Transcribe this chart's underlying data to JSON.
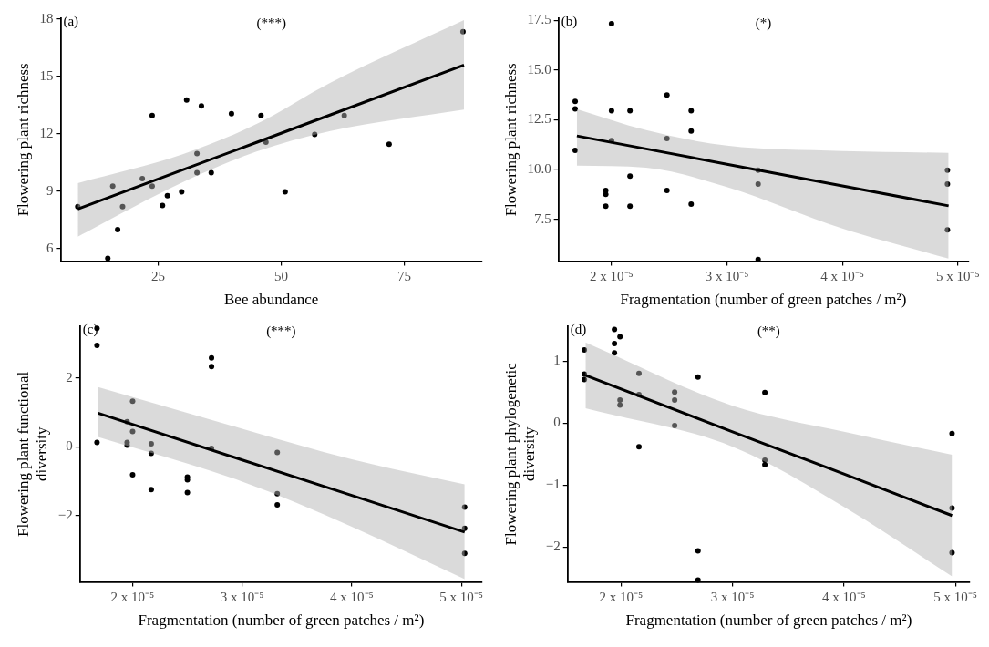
{
  "chart_data": [
    {
      "type": "scatter",
      "xlabel": "Bee abundance",
      "ylabel": "Flowering plant richness",
      "annotations": [
        "(a)",
        "(***)"
      ],
      "line_style": "solid",
      "grid": false,
      "xlim": [
        5.2,
        90.8
      ],
      "xticks": [
        25,
        50,
        75
      ],
      "ylim": [
        5.35,
        18.05
      ],
      "yticks": [
        6,
        9,
        12,
        15,
        18
      ],
      "series": [
        {
          "marker": "circle",
          "color": "#000000",
          "x": [
            8.7,
            15.8,
            17.8,
            16.8,
            14.8,
            21.8,
            23.8,
            23.8,
            25.9,
            26.9,
            29.8,
            30.8,
            32.9,
            32.9,
            33.8,
            35.8,
            39.9,
            45.9,
            46.9,
            50.8,
            56.8,
            62.8,
            71.9,
            86.9
          ],
          "values": [
            8.2,
            9.27,
            8.2,
            7.0,
            5.5,
            9.67,
            12.97,
            9.27,
            8.26,
            8.77,
            8.98,
            13.78,
            10.98,
            9.97,
            13.46,
            9.97,
            13.06,
            12.97,
            11.57,
            8.98,
            11.98,
            12.97,
            11.46,
            17.35
          ]
        },
        {
          "type": "line",
          "color": "#000000",
          "x": [
            8.7,
            30,
            45,
            60,
            87.1
          ],
          "values": [
            8.08,
            10.12,
            11.56,
            13.0,
            15.6
          ],
          "lower": [
            6.63,
            9.47,
            11.08,
            12.16,
            13.28
          ],
          "upper": [
            9.43,
            10.94,
            12.52,
            14.68,
            17.95
          ]
        }
      ]
    },
    {
      "type": "scatter",
      "xlabel": "Fragmentation (number of green patches / m²)",
      "ylabel": "Flowering plant richness",
      "annotations": [
        "(b)",
        "(*)"
      ],
      "line_style": "solid",
      "grid": false,
      "xlim": [
        1.54e-05,
        5.09e-05
      ],
      "xticks": [
        {
          "value": 2e-05,
          "label": "2 x 10⁻⁵"
        },
        {
          "value": 3e-05,
          "label": "3 x 10⁻⁵"
        },
        {
          "value": 4e-05,
          "label": "4 x 10⁻⁵"
        },
        {
          "value": 5e-05,
          "label": "5 x 10⁻⁵"
        }
      ],
      "ylim": [
        5.4,
        17.6
      ],
      "yticks": [
        {
          "value": 7.5,
          "label": "7.5"
        },
        {
          "value": 10,
          "label": "10.0"
        },
        {
          "value": 12.5,
          "label": "12.5"
        },
        {
          "value": 15,
          "label": "15.0"
        },
        {
          "value": 17.5,
          "label": "17.5"
        }
      ],
      "series": [
        {
          "marker": "circle",
          "color": "#000000",
          "x": [
            1.685e-05,
            1.685e-05,
            1.685e-05,
            2e-05,
            2e-05,
            2e-05,
            1.95e-05,
            1.95e-05,
            1.95e-05,
            2.16e-05,
            2.16e-05,
            2.16e-05,
            2.48e-05,
            2.48e-05,
            2.48e-05,
            2.69e-05,
            2.69e-05,
            2.69e-05,
            3.27e-05,
            3.27e-05,
            3.27e-05,
            4.91e-05,
            4.91e-05,
            4.91e-05
          ],
          "values": [
            13.43,
            13.05,
            10.96,
            17.33,
            12.95,
            11.46,
            8.95,
            8.76,
            8.16,
            12.95,
            9.67,
            8.16,
            13.74,
            11.56,
            8.95,
            12.95,
            11.94,
            8.27,
            9.97,
            9.27,
            5.48,
            9.97,
            9.27,
            6.97
          ]
        },
        {
          "type": "line",
          "color": "#000000",
          "x": [
            1.7e-05,
            2.3e-05,
            3e-05,
            4e-05,
            4.92e-05
          ],
          "values": [
            11.69,
            11.04,
            10.27,
            9.18,
            8.18
          ],
          "lower": [
            10.2,
            10.1,
            9.12,
            7.04,
            5.53
          ],
          "upper": [
            13.04,
            11.98,
            11.2,
            10.93,
            10.84
          ]
        }
      ]
    },
    {
      "type": "scatter",
      "xlabel": "Fragmentation (number of green patches / m²)",
      "ylabel": "Flowering plant functional diversity",
      "annotations": [
        "(c)",
        "(***)"
      ],
      "line_style": "solid",
      "grid": false,
      "xlim": [
        1.52e-05,
        5.19e-05
      ],
      "xticks": [
        {
          "value": 2e-05,
          "label": "2 x 10⁻⁵"
        },
        {
          "value": 3e-05,
          "label": "3 x 10⁻⁵"
        },
        {
          "value": 4e-05,
          "label": "4 x 10⁻⁵"
        },
        {
          "value": 5e-05,
          "label": "5 x 10⁻⁵"
        }
      ],
      "ylim": [
        -3.93,
        3.51
      ],
      "yticks": [
        {
          "value": -2,
          "label": "−2"
        },
        0,
        2
      ],
      "series": [
        {
          "marker": "circle",
          "color": "#000000",
          "x": [
            1.675e-05,
            1.675e-05,
            1.675e-05,
            1.95e-05,
            1.95e-05,
            1.95e-05,
            2e-05,
            2e-05,
            2e-05,
            2.17e-05,
            2.17e-05,
            2.17e-05,
            2.5e-05,
            2.5e-05,
            2.5e-05,
            2.72e-05,
            2.72e-05,
            2.72e-05,
            3.32e-05,
            3.32e-05,
            3.32e-05,
            5.03e-05,
            5.03e-05,
            5.03e-05
          ],
          "values": [
            3.45,
            2.95,
            0.13,
            0.73,
            0.13,
            0.05,
            1.33,
            0.45,
            -0.81,
            0.09,
            -0.19,
            -1.24,
            -0.88,
            -0.96,
            -1.33,
            2.59,
            2.34,
            -0.04,
            -0.16,
            -1.36,
            -1.69,
            -1.75,
            -2.37,
            -3.1
          ]
        },
        {
          "type": "line",
          "color": "#000000",
          "x": [
            1.685e-05,
            3e-05,
            4e-05,
            5.03e-05
          ],
          "values": [
            0.98,
            -0.38,
            -1.41,
            -2.48
          ],
          "lower": [
            0.29,
            -1.01,
            -2.32,
            -3.85
          ],
          "upper": [
            1.74,
            0.53,
            -0.36,
            -1.09
          ]
        }
      ]
    },
    {
      "type": "scatter",
      "xlabel": "Fragmentation (number of green patches / m²)",
      "ylabel": "Flowering plant phylogenetic diversity",
      "annotations": [
        "(d)",
        "(**)"
      ],
      "line_style": "solid",
      "grid": false,
      "xlim": [
        1.52e-05,
        5.13e-05
      ],
      "xticks": [
        {
          "value": 2e-05,
          "label": "2 x 10⁻⁵"
        },
        {
          "value": 3e-05,
          "label": "3 x 10⁻⁵"
        },
        {
          "value": 4e-05,
          "label": "4 x 10⁻⁵"
        },
        {
          "value": 5e-05,
          "label": "5 x 10⁻⁵"
        }
      ],
      "ylim": [
        -2.56,
        1.56
      ],
      "yticks": [
        {
          "value": -2,
          "label": "−2"
        },
        {
          "value": -1,
          "label": "−1"
        },
        0,
        1
      ],
      "series": [
        {
          "marker": "circle",
          "color": "#000000",
          "x": [
            1.67e-05,
            1.67e-05,
            1.67e-05,
            1.94e-05,
            1.94e-05,
            1.94e-05,
            1.99e-05,
            1.99e-05,
            1.99e-05,
            2.16e-05,
            2.16e-05,
            2.16e-05,
            2.48e-05,
            2.48e-05,
            2.48e-05,
            2.69e-05,
            2.69e-05,
            2.69e-05,
            3.29e-05,
            3.29e-05,
            3.29e-05,
            4.97e-05,
            4.97e-05,
            4.97e-05
          ],
          "values": [
            1.18,
            0.79,
            0.7,
            1.51,
            1.28,
            1.13,
            1.39,
            0.37,
            0.29,
            0.8,
            0.46,
            -0.38,
            0.5,
            0.37,
            -0.04,
            0.74,
            -2.06,
            -2.53,
            0.49,
            -0.6,
            -0.67,
            -0.17,
            -1.37,
            -2.09
          ]
        },
        {
          "type": "line",
          "color": "#000000",
          "x": [
            1.68e-05,
            3e-05,
            4e-05,
            4.97e-05
          ],
          "values": [
            0.77,
            -0.14,
            -0.82,
            -1.49
          ],
          "lower": [
            0.24,
            -0.38,
            -1.35,
            -2.47
          ],
          "upper": [
            1.3,
            0.28,
            -0.14,
            -0.51
          ]
        }
      ]
    }
  ]
}
